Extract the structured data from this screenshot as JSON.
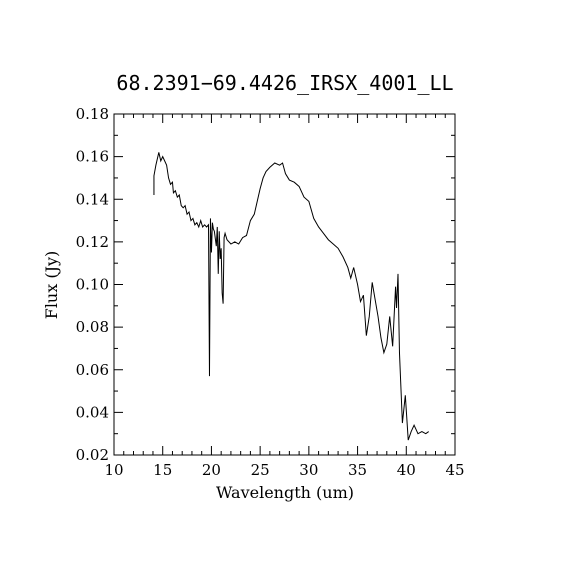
{
  "chart_data": {
    "type": "line",
    "title": "68.2391−69.4426_IRSX_4001_LL",
    "xlabel": "Wavelength (um)",
    "ylabel": "Flux (Jy)",
    "xlim": [
      10,
      45
    ],
    "ylim": [
      0.02,
      0.18
    ],
    "xticks": [
      10,
      15,
      20,
      25,
      30,
      35,
      40,
      45
    ],
    "xtick_labels": [
      "10",
      "15",
      "20",
      "25",
      "30",
      "35",
      "40",
      "45"
    ],
    "yticks": [
      0.02,
      0.04,
      0.06,
      0.08,
      0.1,
      0.12,
      0.14,
      0.16,
      0.18
    ],
    "ytick_labels": [
      "0.02",
      "0.04",
      "0.06",
      "0.08",
      "0.10",
      "0.12",
      "0.14",
      "0.16",
      "0.18"
    ],
    "grid": false,
    "series": [
      {
        "color": "#000000",
        "x": [
          14.1,
          14.1,
          14.3,
          14.6,
          14.8,
          15.0,
          15.2,
          15.4,
          15.6,
          15.8,
          16.0,
          16.1,
          16.3,
          16.5,
          16.7,
          16.9,
          17.1,
          17.3,
          17.5,
          17.7,
          17.9,
          18.1,
          18.3,
          18.5,
          18.7,
          18.9,
          19.1,
          19.3,
          19.5,
          19.7,
          19.8,
          19.9,
          20.0,
          20.1,
          20.2,
          20.3,
          20.5,
          20.6,
          20.7,
          20.8,
          20.9,
          21.0,
          21.1,
          21.2,
          21.3,
          21.4,
          21.6,
          22.0,
          22.4,
          22.8,
          23.2,
          23.6,
          24.0,
          24.4,
          24.7,
          25.0,
          25.3,
          25.6,
          26.0,
          26.5,
          27.0,
          27.3,
          27.6,
          28.0,
          28.5,
          29.0,
          29.5,
          30.0,
          30.5,
          31.0,
          31.5,
          32.0,
          32.5,
          33.0,
          33.5,
          34.0,
          34.3,
          34.6,
          35.0,
          35.3,
          35.6,
          35.9,
          36.2,
          36.5,
          36.8,
          37.1,
          37.4,
          37.7,
          38.0,
          38.3,
          38.6,
          38.9,
          39.0,
          39.15,
          39.3,
          39.6,
          39.9,
          40.2,
          40.5,
          40.8,
          41.2,
          41.6,
          42.0,
          42.3
        ],
        "y": [
          0.142,
          0.151,
          0.156,
          0.162,
          0.158,
          0.16,
          0.158,
          0.156,
          0.15,
          0.147,
          0.148,
          0.143,
          0.144,
          0.141,
          0.142,
          0.137,
          0.136,
          0.137,
          0.133,
          0.134,
          0.13,
          0.131,
          0.128,
          0.129,
          0.127,
          0.13,
          0.127,
          0.128,
          0.127,
          0.128,
          0.057,
          0.131,
          0.115,
          0.129,
          0.126,
          0.125,
          0.118,
          0.127,
          0.105,
          0.125,
          0.112,
          0.117,
          0.096,
          0.091,
          0.122,
          0.124,
          0.121,
          0.119,
          0.12,
          0.119,
          0.122,
          0.123,
          0.13,
          0.133,
          0.139,
          0.145,
          0.15,
          0.153,
          0.155,
          0.157,
          0.156,
          0.157,
          0.152,
          0.149,
          0.148,
          0.146,
          0.141,
          0.139,
          0.131,
          0.127,
          0.124,
          0.121,
          0.119,
          0.117,
          0.113,
          0.108,
          0.103,
          0.108,
          0.1,
          0.092,
          0.095,
          0.076,
          0.085,
          0.101,
          0.093,
          0.085,
          0.075,
          0.068,
          0.072,
          0.085,
          0.071,
          0.099,
          0.089,
          0.105,
          0.068,
          0.035,
          0.048,
          0.027,
          0.031,
          0.034,
          0.03,
          0.031,
          0.03,
          0.031
        ]
      }
    ]
  }
}
